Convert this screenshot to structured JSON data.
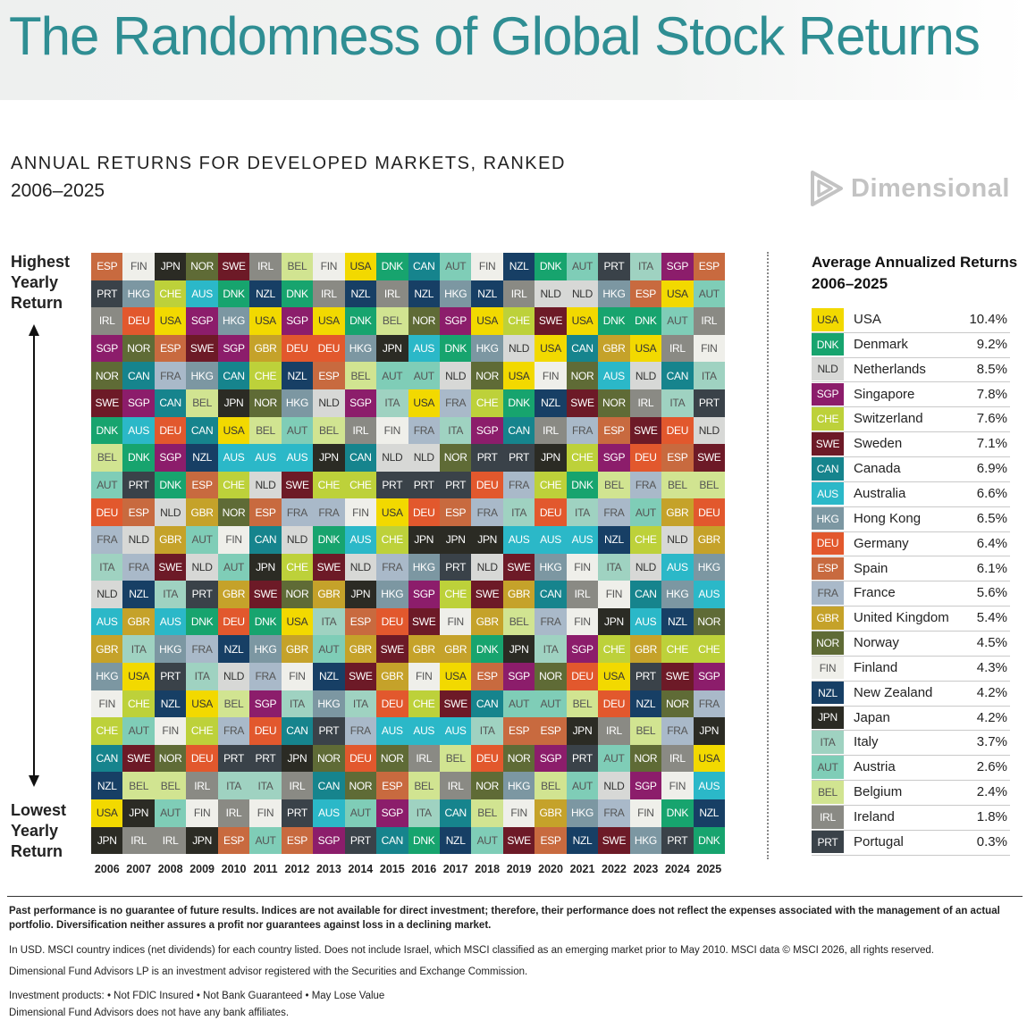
{
  "title": "The Randomness of Global Stock Returns",
  "subtitle": "ANNUAL RETURNS FOR DEVELOPED MARKETS, RANKED",
  "period": "2006–2025",
  "brand": "Dimensional",
  "side_labels": {
    "top": [
      "Highest",
      "Yearly",
      "Return"
    ],
    "bottom": [
      "Lowest",
      "Yearly",
      "Return"
    ]
  },
  "countries": {
    "USA": {
      "name": "United States",
      "color": "#f2d900",
      "text": "#333333"
    },
    "DNK": {
      "name": "Denmark",
      "color": "#17a46e",
      "text": "#ffffff"
    },
    "NLD": {
      "name": "Netherlands",
      "color": "#d7d8d6",
      "text": "#333333"
    },
    "SGP": {
      "name": "Singapore",
      "color": "#8c1d6b",
      "text": "#ffffff"
    },
    "CHE": {
      "name": "Switzerland",
      "color": "#bdd13a",
      "text": "#ffffff"
    },
    "SWE": {
      "name": "Sweden",
      "color": "#6d1a27",
      "text": "#ffffff"
    },
    "CAN": {
      "name": "Canada",
      "color": "#16848d",
      "text": "#ffffff"
    },
    "AUS": {
      "name": "Australia",
      "color": "#2bb8c8",
      "text": "#ffffff"
    },
    "HKG": {
      "name": "Hong Kong",
      "color": "#7c97a2",
      "text": "#ffffff"
    },
    "DEU": {
      "name": "Germany",
      "color": "#e2582d",
      "text": "#ffffff"
    },
    "ESP": {
      "name": "Spain",
      "color": "#c86a3f",
      "text": "#ffffff"
    },
    "FRA": {
      "name": "France",
      "color": "#a9b9c9",
      "text": "#555555"
    },
    "GBR": {
      "name": "United Kingdom",
      "color": "#c5a22a",
      "text": "#ffffff"
    },
    "NOR": {
      "name": "Norway",
      "color": "#5f6b36",
      "text": "#ffffff"
    },
    "FIN": {
      "name": "Finland",
      "color": "#efefea",
      "text": "#555555"
    },
    "NZL": {
      "name": "New Zealand",
      "color": "#173f65",
      "text": "#ffffff"
    },
    "JPN": {
      "name": "Japan",
      "color": "#2b2b24",
      "text": "#ffffff"
    },
    "ITA": {
      "name": "Italy",
      "color": "#9fd2c1",
      "text": "#555555"
    },
    "AUT": {
      "name": "Austria",
      "color": "#7fcdb7",
      "text": "#555555"
    },
    "BEL": {
      "name": "Belgium",
      "color": "#d1e491",
      "text": "#555555"
    },
    "IRL": {
      "name": "Ireland",
      "color": "#8a8a84",
      "text": "#ffffff"
    },
    "PRT": {
      "name": "Portugal",
      "color": "#3a4249",
      "text": "#ffffff"
    }
  },
  "chart_data": {
    "type": "table",
    "title": "ANNUAL RETURNS FOR DEVELOPED MARKETS, RANKED",
    "subtitle": "2006–2025",
    "x_categories": [
      "2006",
      "2007",
      "2008",
      "2009",
      "2010",
      "2011",
      "2012",
      "2013",
      "2014",
      "2015",
      "2016",
      "2017",
      "2018",
      "2019",
      "2020",
      "2021",
      "2022",
      "2023",
      "2024",
      "2025"
    ],
    "rank_direction": "top = highest yearly return, bottom = lowest yearly return",
    "columns": [
      [
        "ESP",
        "PRT",
        "IRL",
        "SGP",
        "NOR",
        "SWE",
        "DNK",
        "BEL",
        "AUT",
        "DEU",
        "FRA",
        "ITA",
        "NLD",
        "AUS",
        "GBR",
        "HKG",
        "FIN",
        "CHE",
        "CAN",
        "NZL",
        "USA",
        "JPN"
      ],
      [
        "FIN",
        "HKG",
        "DEU",
        "NOR",
        "CAN",
        "SGP",
        "AUS",
        "DNK",
        "PRT",
        "ESP",
        "NLD",
        "FRA",
        "NZL",
        "GBR",
        "ITA",
        "USA",
        "CHE",
        "AUT",
        "SWE",
        "BEL",
        "JPN",
        "IRL"
      ],
      [
        "JPN",
        "CHE",
        "USA",
        "ESP",
        "FRA",
        "CAN",
        "DEU",
        "SGP",
        "DNK",
        "NLD",
        "GBR",
        "SWE",
        "ITA",
        "AUS",
        "HKG",
        "PRT",
        "NZL",
        "FIN",
        "NOR",
        "BEL",
        "AUT",
        "IRL"
      ],
      [
        "NOR",
        "AUS",
        "SGP",
        "SWE",
        "HKG",
        "BEL",
        "CAN",
        "NZL",
        "ESP",
        "GBR",
        "AUT",
        "NLD",
        "PRT",
        "DNK",
        "FRA",
        "ITA",
        "USA",
        "CHE",
        "DEU",
        "IRL",
        "FIN",
        "JPN"
      ],
      [
        "SWE",
        "DNK",
        "HKG",
        "SGP",
        "CAN",
        "JPN",
        "USA",
        "AUS",
        "CHE",
        "NOR",
        "FIN",
        "AUT",
        "GBR",
        "DEU",
        "NZL",
        "NLD",
        "BEL",
        "FRA",
        "PRT",
        "ITA",
        "IRL",
        "ESP"
      ],
      [
        "IRL",
        "NZL",
        "USA",
        "GBR",
        "CHE",
        "NOR",
        "BEL",
        "AUS",
        "NLD",
        "ESP",
        "CAN",
        "JPN",
        "SWE",
        "DNK",
        "HKG",
        "FRA",
        "SGP",
        "DEU",
        "PRT",
        "ITA",
        "FIN",
        "AUT"
      ],
      [
        "BEL",
        "DNK",
        "SGP",
        "DEU",
        "NZL",
        "HKG",
        "AUT",
        "AUS",
        "SWE",
        "FRA",
        "NLD",
        "CHE",
        "NOR",
        "USA",
        "GBR",
        "FIN",
        "ITA",
        "CAN",
        "JPN",
        "IRL",
        "PRT",
        "ESP"
      ],
      [
        "FIN",
        "IRL",
        "USA",
        "DEU",
        "ESP",
        "NLD",
        "BEL",
        "JPN",
        "CHE",
        "FRA",
        "DNK",
        "SWE",
        "GBR",
        "ITA",
        "AUT",
        "NZL",
        "HKG",
        "PRT",
        "NOR",
        "CAN",
        "AUS",
        "SGP"
      ],
      [
        "USA",
        "NZL",
        "DNK",
        "HKG",
        "BEL",
        "SGP",
        "IRL",
        "CAN",
        "CHE",
        "FIN",
        "AUS",
        "NLD",
        "JPN",
        "ESP",
        "GBR",
        "SWE",
        "ITA",
        "FRA",
        "DEU",
        "NOR",
        "AUT",
        "PRT"
      ],
      [
        "DNK",
        "IRL",
        "BEL",
        "JPN",
        "AUT",
        "ITA",
        "FIN",
        "NLD",
        "PRT",
        "USA",
        "CHE",
        "FRA",
        "HKG",
        "DEU",
        "SWE",
        "GBR",
        "DEU",
        "AUS",
        "NOR",
        "ESP",
        "SGP",
        "CAN"
      ],
      [
        "CAN",
        "NZL",
        "NOR",
        "AUS",
        "AUT",
        "USA",
        "FRA",
        "NLD",
        "PRT",
        "DEU",
        "JPN",
        "HKG",
        "SGP",
        "SWE",
        "GBR",
        "FIN",
        "CHE",
        "AUS",
        "IRL",
        "BEL",
        "ITA",
        "DNK"
      ],
      [
        "AUT",
        "HKG",
        "SGP",
        "DNK",
        "NLD",
        "FRA",
        "ITA",
        "NOR",
        "PRT",
        "ESP",
        "JPN",
        "PRT",
        "CHE",
        "FIN",
        "GBR",
        "USA",
        "SWE",
        "AUS",
        "BEL",
        "IRL",
        "CAN",
        "NZL"
      ],
      [
        "FIN",
        "NZL",
        "USA",
        "HKG",
        "NOR",
        "CHE",
        "SGP",
        "PRT",
        "DEU",
        "FRA",
        "JPN",
        "NLD",
        "SWE",
        "GBR",
        "DNK",
        "ESP",
        "CAN",
        "ITA",
        "DEU",
        "NOR",
        "BEL",
        "AUT"
      ],
      [
        "NZL",
        "IRL",
        "CHE",
        "NLD",
        "USA",
        "DNK",
        "CAN",
        "PRT",
        "FRA",
        "ITA",
        "AUS",
        "SWE",
        "GBR",
        "BEL",
        "JPN",
        "SGP",
        "AUT",
        "ESP",
        "NOR",
        "HKG",
        "FIN",
        "SWE"
      ],
      [
        "DNK",
        "NLD",
        "SWE",
        "USA",
        "FIN",
        "NZL",
        "IRL",
        "JPN",
        "CHE",
        "DEU",
        "AUS",
        "HKG",
        "CAN",
        "FRA",
        "ITA",
        "NOR",
        "AUT",
        "ESP",
        "SGP",
        "BEL",
        "GBR",
        "ESP"
      ],
      [
        "AUT",
        "NLD",
        "USA",
        "CAN",
        "NOR",
        "SWE",
        "FRA",
        "CHE",
        "DNK",
        "ITA",
        "AUS",
        "FIN",
        "IRL",
        "FIN",
        "SGP",
        "DEU",
        "BEL",
        "JPN",
        "PRT",
        "AUT",
        "HKG",
        "NZL"
      ],
      [
        "PRT",
        "HKG",
        "DNK",
        "GBR",
        "AUS",
        "NOR",
        "ESP",
        "SGP",
        "BEL",
        "FRA",
        "NZL",
        "ITA",
        "FIN",
        "JPN",
        "CHE",
        "USA",
        "DEU",
        "IRL",
        "AUT",
        "NLD",
        "FRA",
        "SWE"
      ],
      [
        "ITA",
        "ESP",
        "DNK",
        "USA",
        "NLD",
        "IRL",
        "SWE",
        "DEU",
        "FRA",
        "AUT",
        "CHE",
        "NLD",
        "CAN",
        "AUS",
        "GBR",
        "PRT",
        "NZL",
        "BEL",
        "NOR",
        "SGP",
        "FIN",
        "HKG"
      ],
      [
        "SGP",
        "USA",
        "AUT",
        "IRL",
        "CAN",
        "ITA",
        "DEU",
        "ESP",
        "BEL",
        "GBR",
        "NLD",
        "AUS",
        "HKG",
        "NZL",
        "CHE",
        "SWE",
        "NOR",
        "FRA",
        "IRL",
        "FIN",
        "DNK",
        "PRT"
      ],
      [
        "ESP",
        "AUT",
        "IRL",
        "FIN",
        "ITA",
        "PRT",
        "NLD",
        "SWE",
        "BEL",
        "DEU",
        "GBR",
        "HKG",
        "AUS",
        "NOR",
        "CHE",
        "SGP",
        "FRA",
        "JPN",
        "USA",
        "AUS",
        "NZL",
        "DNK"
      ]
    ],
    "legend_title": [
      "Average Annualized Returns",
      "2006–2025"
    ],
    "average_annualized_returns": [
      {
        "code": "USA",
        "country": "USA",
        "value": "10.4%"
      },
      {
        "code": "DNK",
        "country": "Denmark",
        "value": "9.2%"
      },
      {
        "code": "NLD",
        "country": "Netherlands",
        "value": "8.5%"
      },
      {
        "code": "SGP",
        "country": "Singapore",
        "value": "7.8%"
      },
      {
        "code": "CHE",
        "country": "Switzerland",
        "value": "7.6%"
      },
      {
        "code": "SWE",
        "country": "Sweden",
        "value": "7.1%"
      },
      {
        "code": "CAN",
        "country": "Canada",
        "value": "6.9%"
      },
      {
        "code": "AUS",
        "country": "Australia",
        "value": "6.6%"
      },
      {
        "code": "HKG",
        "country": "Hong Kong",
        "value": "6.5%"
      },
      {
        "code": "DEU",
        "country": "Germany",
        "value": "6.4%"
      },
      {
        "code": "ESP",
        "country": "Spain",
        "value": "6.1%"
      },
      {
        "code": "FRA",
        "country": "France",
        "value": "5.6%"
      },
      {
        "code": "GBR",
        "country": "United Kingdom",
        "value": "5.4%"
      },
      {
        "code": "NOR",
        "country": "Norway",
        "value": "4.5%"
      },
      {
        "code": "FIN",
        "country": "Finland",
        "value": "4.3%"
      },
      {
        "code": "NZL",
        "country": "New Zealand",
        "value": "4.2%"
      },
      {
        "code": "JPN",
        "country": "Japan",
        "value": "4.2%"
      },
      {
        "code": "ITA",
        "country": "Italy",
        "value": "3.7%"
      },
      {
        "code": "AUT",
        "country": "Austria",
        "value": "2.6%"
      },
      {
        "code": "BEL",
        "country": "Belgium",
        "value": "2.4%"
      },
      {
        "code": "IRL",
        "country": "Ireland",
        "value": "1.8%"
      },
      {
        "code": "PRT",
        "country": "Portugal",
        "value": "0.3%"
      }
    ]
  },
  "footer": {
    "disclaimer": "Past performance is no guarantee of future results. Indices are not available for direct investment; therefore, their performance does not reflect the expenses associated with the management of an actual portfolio. Diversification neither assures a profit nor guarantees against loss in a declining market.",
    "data_note": "In USD. MSCI country indices (net dividends) for each country listed. Does not include Israel, which MSCI classified as an emerging market prior to May 2010. MSCI data © MSCI 2026, all rights reserved.",
    "advisor_note": "Dimensional Fund Advisors LP is an investment advisor registered with the Securities and Exchange Commission.",
    "products_note": "Investment products: • Not FDIC Insured • Not Bank Guaranteed • May Lose Value",
    "affiliates_note": "Dimensional Fund Advisors does not have any bank affiliates."
  }
}
